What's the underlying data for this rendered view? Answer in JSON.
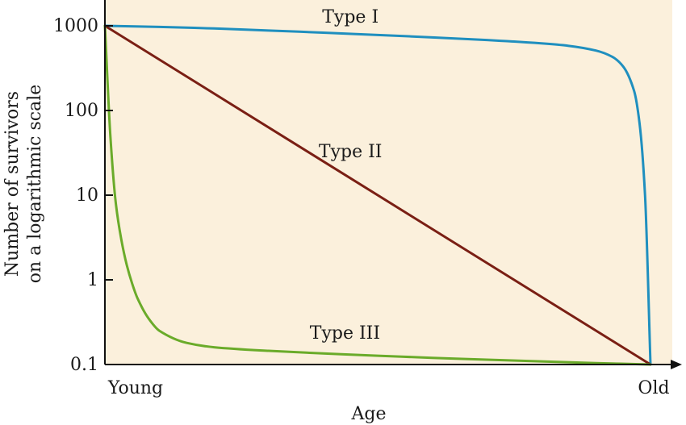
{
  "chart_data": {
    "type": "line",
    "title": "",
    "xlabel": "Age",
    "ylabel_lines": [
      "Number of survivors",
      "on a logarithmic scale"
    ],
    "yscale": "log",
    "ylim": [
      0.1,
      1000
    ],
    "yticks": [
      {
        "value": 1000,
        "label": "1000"
      },
      {
        "value": 100,
        "label": "100"
      },
      {
        "value": 10,
        "label": "10"
      },
      {
        "value": 1,
        "label": "1"
      },
      {
        "value": 0.1,
        "label": "0.1"
      }
    ],
    "xlim": [
      0,
      1
    ],
    "xticks": [
      {
        "value": 0,
        "label": "Young"
      },
      {
        "value": 1,
        "label": "Old"
      }
    ],
    "grid": false,
    "background": "#fbf0dc",
    "series": [
      {
        "name": "Type I",
        "color": "#1f8fbf",
        "x": [
          0,
          0.1,
          0.2,
          0.3,
          0.4,
          0.5,
          0.6,
          0.7,
          0.8,
          0.85,
          0.9,
          0.93,
          0.95,
          0.97,
          0.98,
          0.99,
          1.0
        ],
        "y": [
          1000,
          970,
          930,
          880,
          830,
          780,
          730,
          680,
          620,
          580,
          510,
          430,
          330,
          170,
          70,
          10,
          0.1
        ]
      },
      {
        "name": "Type II",
        "color": "#7a1f14",
        "x": [
          0,
          1
        ],
        "y": [
          1000,
          0.1
        ]
      },
      {
        "name": "Type III",
        "color": "#6aab2a",
        "x": [
          0,
          0.01,
          0.02,
          0.03,
          0.04,
          0.05,
          0.06,
          0.08,
          0.1,
          0.15,
          0.2,
          0.3,
          0.4,
          0.5,
          0.6,
          0.7,
          0.8,
          0.9,
          1.0
        ],
        "y": [
          1000,
          50,
          8,
          3,
          1.5,
          0.9,
          0.6,
          0.35,
          0.25,
          0.18,
          0.16,
          0.145,
          0.135,
          0.127,
          0.12,
          0.114,
          0.109,
          0.104,
          0.1
        ]
      }
    ]
  }
}
